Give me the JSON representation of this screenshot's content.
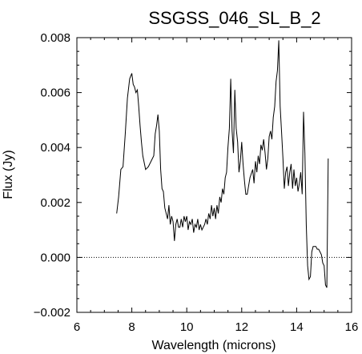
{
  "chart_data": {
    "type": "line",
    "title": "SSGSS_046_SL_B_2",
    "xlabel": "Wavelength (microns)",
    "ylabel": "Flux (Jy)",
    "xlim": [
      6,
      16
    ],
    "ylim": [
      -0.002,
      0.008
    ],
    "x_ticks": [
      6,
      8,
      10,
      12,
      14,
      16
    ],
    "x_tick_labels": [
      "6",
      "8",
      "10",
      "12",
      "14",
      "16"
    ],
    "y_ticks": [
      -0.002,
      0.0,
      0.002,
      0.004,
      0.006,
      0.008
    ],
    "y_tick_labels": [
      "−0.002",
      "0.000",
      "0.002",
      "0.004",
      "0.006",
      "0.008"
    ],
    "reference_line": {
      "y": 0.0,
      "style": "dotted"
    },
    "grid": false,
    "series": [
      {
        "x": [
          7.45,
          7.52,
          7.6,
          7.68,
          7.76,
          7.84,
          7.92,
          8.0,
          8.05,
          8.1,
          8.15,
          8.2,
          8.25,
          8.3,
          8.35,
          8.4,
          8.5,
          8.6,
          8.7,
          8.8,
          8.85,
          8.9,
          8.95,
          9.0,
          9.05,
          9.1,
          9.15,
          9.2,
          9.3,
          9.35,
          9.4,
          9.45,
          9.5,
          9.55,
          9.6,
          9.65,
          9.7,
          9.75,
          9.8,
          9.85,
          9.9,
          9.95,
          10.0,
          10.05,
          10.1,
          10.15,
          10.2,
          10.25,
          10.3,
          10.35,
          10.4,
          10.45,
          10.5,
          10.55,
          10.6,
          10.65,
          10.7,
          10.75,
          10.8,
          10.85,
          10.9,
          10.95,
          11.0,
          11.05,
          11.1,
          11.15,
          11.2,
          11.25,
          11.3,
          11.35,
          11.4,
          11.45,
          11.5,
          11.55,
          11.6,
          11.65,
          11.7,
          11.75,
          11.8,
          11.85,
          11.9,
          11.95,
          12.0,
          12.05,
          12.1,
          12.15,
          12.2,
          12.25,
          12.3,
          12.4,
          12.45,
          12.5,
          12.55,
          12.6,
          12.65,
          12.7,
          12.75,
          12.8,
          12.85,
          12.9,
          12.95,
          13.0,
          13.05,
          13.1,
          13.15,
          13.2,
          13.25,
          13.3,
          13.35,
          13.4,
          13.45,
          13.5,
          13.55,
          13.6,
          13.65,
          13.7,
          13.75,
          13.8,
          13.85,
          13.9,
          13.95,
          14.0,
          14.05,
          14.1,
          14.15,
          14.2,
          14.25,
          14.3,
          14.35,
          14.4,
          14.45,
          14.5,
          14.55,
          14.6,
          14.65,
          14.7,
          14.75,
          14.8,
          14.85,
          14.9,
          14.95,
          15.0,
          15.05,
          15.1,
          15.15
        ],
        "y": [
          0.0016,
          0.0022,
          0.0032,
          0.0033,
          0.0045,
          0.0058,
          0.0065,
          0.0067,
          0.0063,
          0.0062,
          0.006,
          0.0061,
          0.0055,
          0.0048,
          0.0042,
          0.0037,
          0.0032,
          0.0033,
          0.0035,
          0.0037,
          0.0045,
          0.0048,
          0.0052,
          0.0046,
          0.0032,
          0.0025,
          0.0024,
          0.0018,
          0.0014,
          0.0019,
          0.0012,
          0.0015,
          0.0013,
          0.0006,
          0.0012,
          0.0014,
          0.0011,
          0.0011,
          0.0014,
          0.0011,
          0.0015,
          0.0013,
          0.0015,
          0.001,
          0.0013,
          0.0012,
          0.0014,
          0.0009,
          0.0012,
          0.0011,
          0.0014,
          0.001,
          0.0012,
          0.001,
          0.0011,
          0.0012,
          0.0014,
          0.0012,
          0.0016,
          0.0014,
          0.0019,
          0.0015,
          0.0018,
          0.0014,
          0.0019,
          0.0016,
          0.0022,
          0.002,
          0.0025,
          0.0023,
          0.0029,
          0.0031,
          0.004,
          0.0047,
          0.0065,
          0.0046,
          0.0038,
          0.0061,
          0.0047,
          0.0042,
          0.0031,
          0.0035,
          0.0042,
          0.0034,
          0.0028,
          0.0023,
          0.0023,
          0.0026,
          0.0029,
          0.0032,
          0.0027,
          0.0035,
          0.0031,
          0.0037,
          0.0034,
          0.0041,
          0.0039,
          0.0043,
          0.0038,
          0.0032,
          0.0036,
          0.0044,
          0.0046,
          0.0043,
          0.0051,
          0.0055,
          0.0064,
          0.0068,
          0.0079,
          0.0055,
          0.0046,
          0.0036,
          0.0025,
          0.0031,
          0.0033,
          0.0026,
          0.0031,
          0.0034,
          0.0025,
          0.0032,
          0.0026,
          0.0029,
          0.0024,
          0.0027,
          0.0031,
          0.0023,
          0.0053,
          0.0038,
          0.0012,
          -0.0003,
          -0.0008,
          -0.0007,
          0.0002,
          0.0004,
          0.0004,
          0.0004,
          0.0003,
          0.0003,
          0.0002,
          0.0001,
          -0.0002,
          -0.0003,
          -0.001,
          -0.0011,
          0.0036
        ]
      }
    ]
  }
}
